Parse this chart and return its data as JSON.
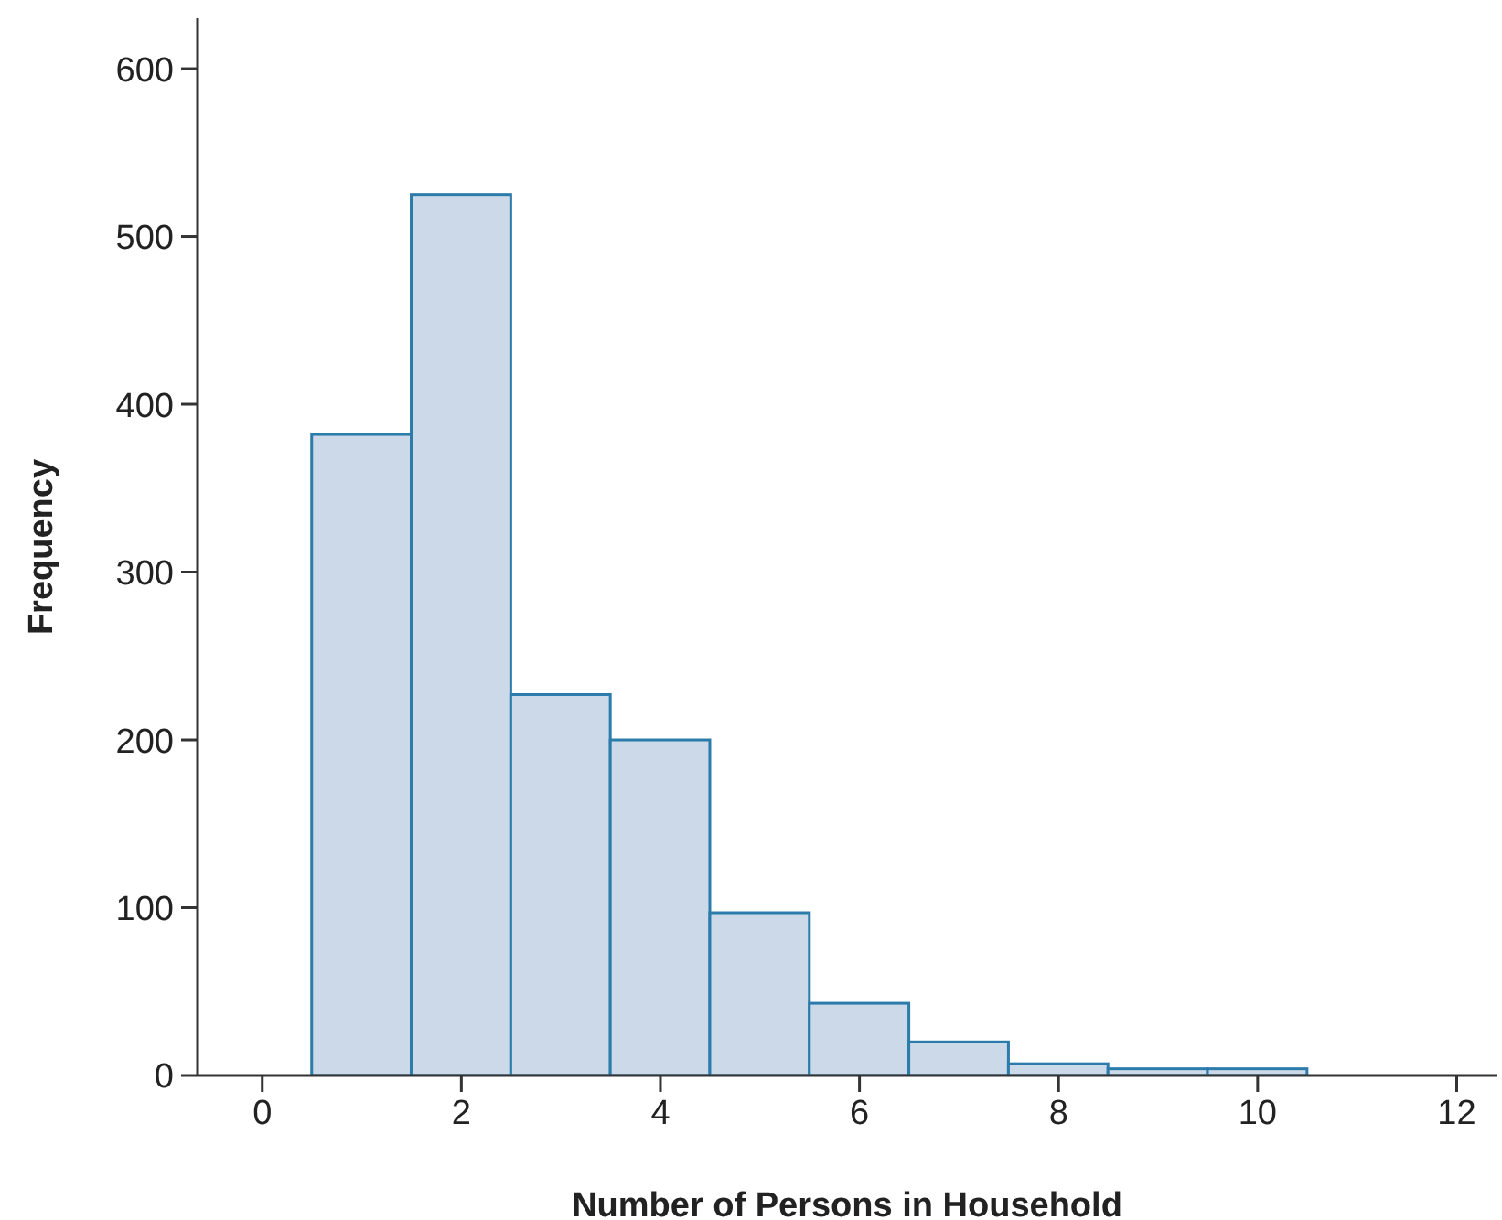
{
  "chart_data": {
    "type": "histogram",
    "xlabel": "Number of Persons in Household",
    "ylabel": "Frequency",
    "bins": [
      0.5,
      1.5,
      2.5,
      3.5,
      4.5,
      5.5,
      6.5,
      7.5,
      8.5,
      9.5,
      10.5
    ],
    "values": [
      382,
      525,
      227,
      200,
      97,
      43,
      20,
      7,
      4,
      4
    ],
    "color": "#ccd9e8",
    "xlim": [
      -0.65,
      12.4
    ],
    "xticks": [
      0,
      2,
      4,
      6,
      8,
      10,
      12
    ],
    "ylim": [
      0,
      630
    ],
    "yticks": [
      0,
      100,
      200,
      300,
      400,
      500,
      600
    ],
    "grid": false,
    "legend": false
  }
}
